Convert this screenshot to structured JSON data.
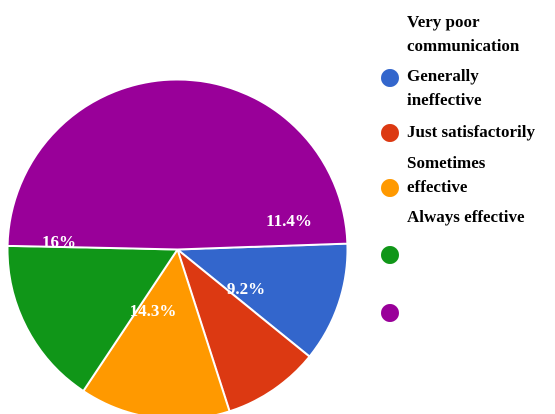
{
  "chart_data": {
    "type": "pie",
    "title": "",
    "legend_position": "right",
    "categories": [
      "Very poor communication",
      "Generally ineffective",
      "Just satisfactorily",
      "Sometimes effective",
      "Always effective"
    ],
    "colors": [
      "#3366cc",
      "#dc3912",
      "#ff9900",
      "#109618",
      "#990099"
    ],
    "values": [
      11.4,
      9.2,
      14.3,
      16,
      49.1
    ],
    "data_labels": [
      "11.4%",
      "9.2%",
      "14.3%",
      "16%",
      ""
    ]
  }
}
